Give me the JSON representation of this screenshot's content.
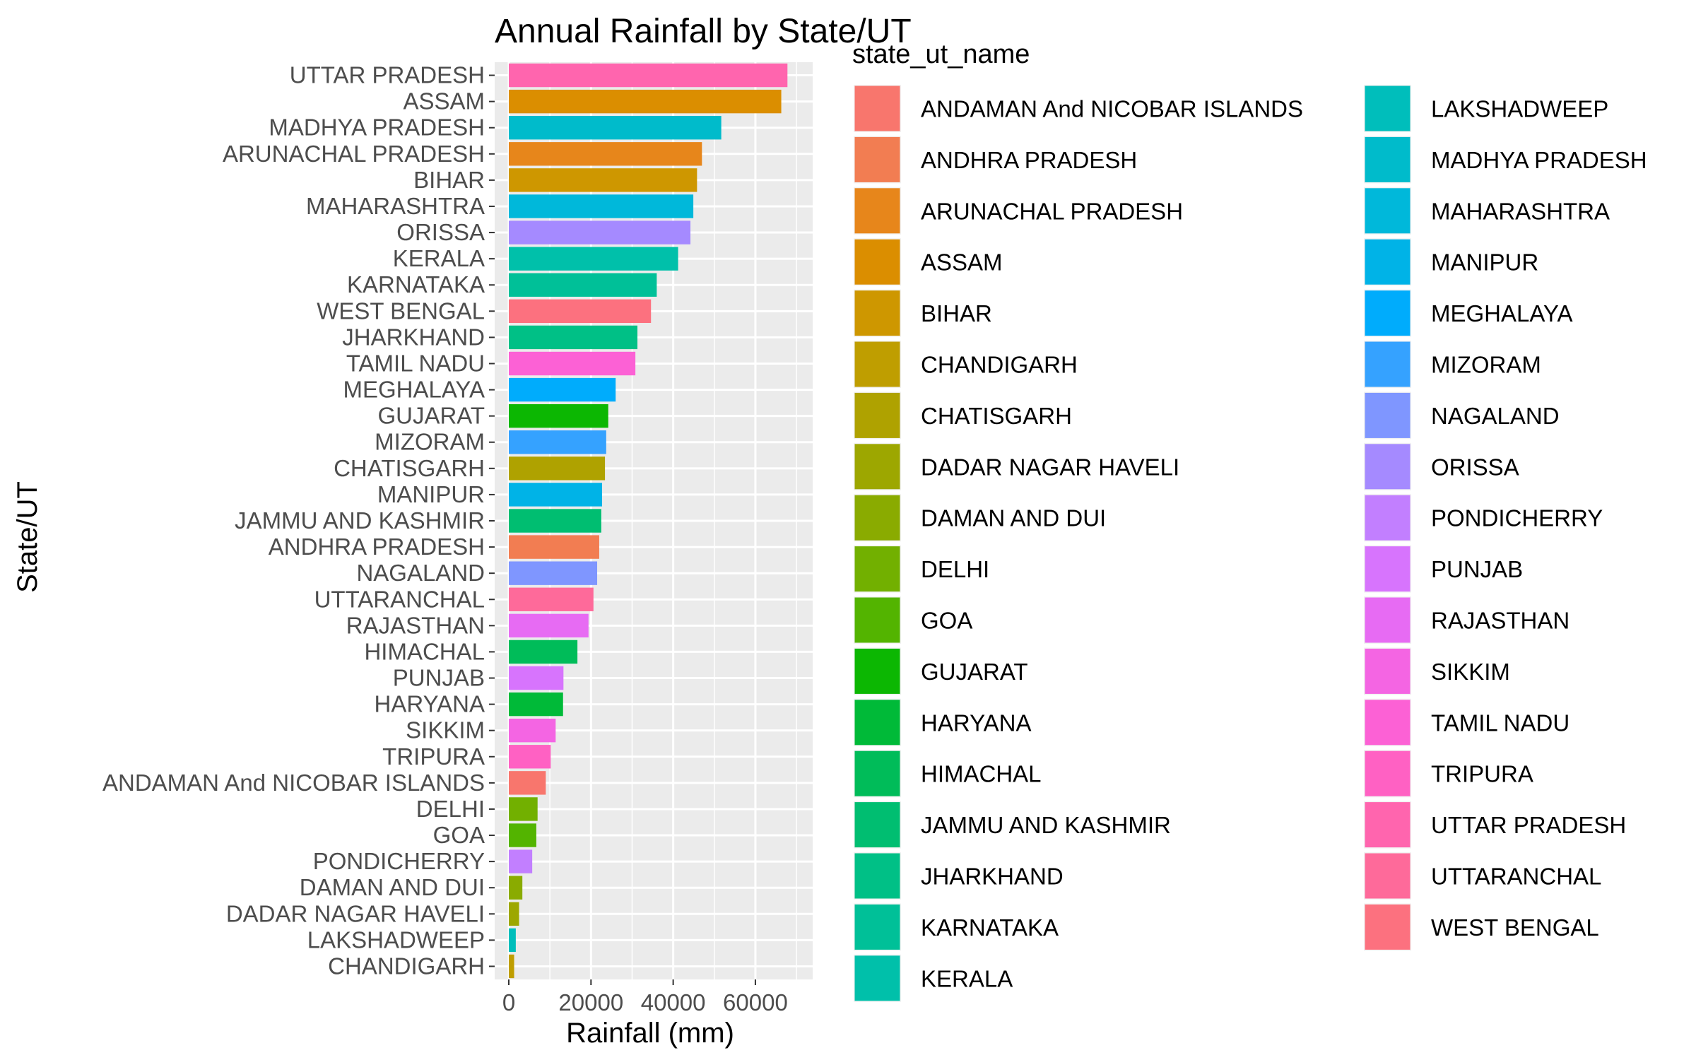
{
  "chart_data": {
    "type": "bar",
    "orientation": "horizontal",
    "title": "Annual Rainfall by State/UT",
    "xlabel": "Rainfall (mm)",
    "ylabel": "State/UT",
    "xlim": [
      0,
      70500
    ],
    "xticks": [
      0,
      20000,
      40000,
      60000
    ],
    "xtick_labels": [
      "0",
      "20000",
      "40000",
      "60000"
    ],
    "grid": true,
    "legend_title": "state_ut_name",
    "legend_position": "right",
    "categories": [
      "UTTAR PRADESH",
      "ASSAM",
      "MADHYA PRADESH",
      "ARUNACHAL PRADESH",
      "BIHAR",
      "MAHARASHTRA",
      "ORISSA",
      "KERALA",
      "KARNATAKA",
      "WEST BENGAL",
      "JHARKHAND",
      "TAMIL NADU",
      "MEGHALAYA",
      "GUJARAT",
      "MIZORAM",
      "CHATISGARH",
      "MANIPUR",
      "JAMMU AND KASHMIR",
      "ANDHRA PRADESH",
      "NAGALAND",
      "UTTARANCHAL",
      "RAJASTHAN",
      "HIMACHAL",
      "PUNJAB",
      "HARYANA",
      "SIKKIM",
      "TRIPURA",
      "ANDAMAN And NICOBAR ISLANDS",
      "DELHI",
      "GOA",
      "PONDICHERRY",
      "DAMAN AND DUI",
      "DADAR NAGAR HAVELI",
      "LAKSHADWEEP",
      "CHANDIGARH"
    ],
    "values": [
      67800,
      66300,
      51700,
      47000,
      45800,
      44900,
      44200,
      41200,
      36000,
      34600,
      31300,
      30800,
      26000,
      24200,
      23700,
      23400,
      22700,
      22500,
      22000,
      21500,
      20600,
      19400,
      16700,
      13300,
      13200,
      11400,
      10200,
      9000,
      7000,
      6700,
      5700,
      3300,
      2500,
      1700,
      1300
    ],
    "legend_items": [
      "ANDAMAN And NICOBAR ISLANDS",
      "ANDHRA PRADESH",
      "ARUNACHAL PRADESH",
      "ASSAM",
      "BIHAR",
      "CHANDIGARH",
      "CHATISGARH",
      "DADAR NAGAR HAVELI",
      "DAMAN AND DUI",
      "DELHI",
      "GOA",
      "GUJARAT",
      "HARYANA",
      "HIMACHAL",
      "JAMMU AND KASHMIR",
      "JHARKHAND",
      "KARNATAKA",
      "KERALA",
      "LAKSHADWEEP",
      "MADHYA PRADESH",
      "MAHARASHTRA",
      "MANIPUR",
      "MEGHALAYA",
      "MIZORAM",
      "NAGALAND",
      "ORISSA",
      "PONDICHERRY",
      "PUNJAB",
      "RAJASTHAN",
      "SIKKIM",
      "TAMIL NADU",
      "TRIPURA",
      "UTTAR PRADESH",
      "UTTARANCHAL",
      "WEST BENGAL"
    ],
    "legend_colors": [
      "#F8766D",
      "#F27D52",
      "#E7861B",
      "#DB8E00",
      "#CE9700",
      "#BF9E00",
      "#AFA200",
      "#9DA700",
      "#8AAB00",
      "#72B000",
      "#53B400",
      "#0CB702",
      "#00BA38",
      "#00BC59",
      "#00BE71",
      "#00C086",
      "#00C098",
      "#00C0AA",
      "#00BEBB",
      "#00BBCB",
      "#00B8DA",
      "#00B3E7",
      "#00ACFC",
      "#35A2FF",
      "#7F96FF",
      "#A58AFF",
      "#C27FFF",
      "#D774FD",
      "#E76BF3",
      "#F465E3",
      "#FC61D5",
      "#FF61C3",
      "#FF65AE",
      "#FE6A9A",
      "#FC717F"
    ]
  }
}
